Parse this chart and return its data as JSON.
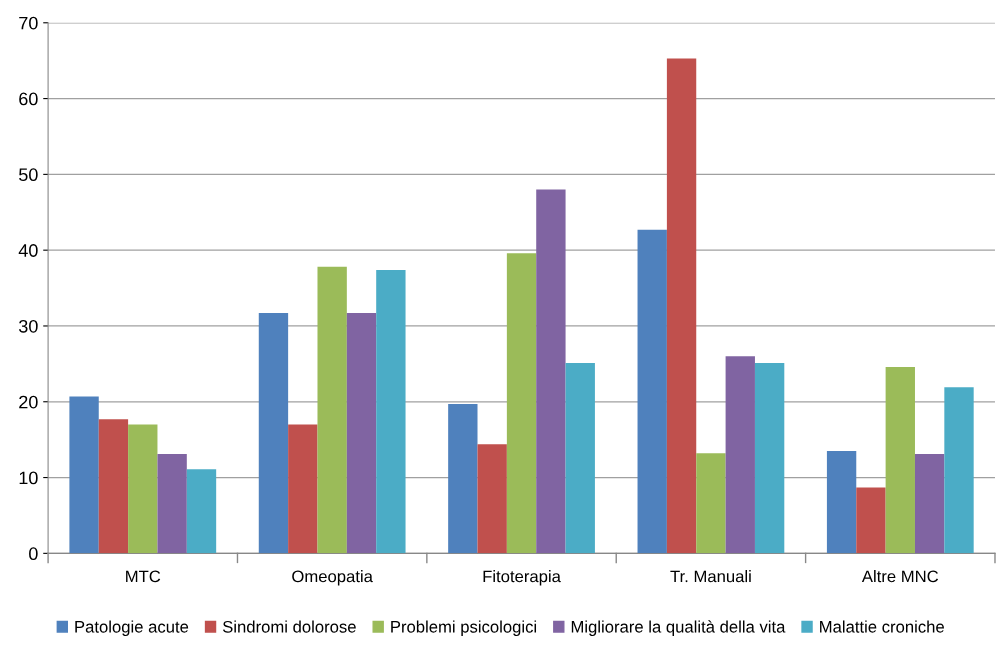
{
  "chart_data": {
    "type": "bar",
    "categories": [
      "MTC",
      "Omeopatia",
      "Fitoterapia",
      "Tr. Manuali",
      "Altre MNC"
    ],
    "series": [
      {
        "name": "Patologie acute",
        "color": "#4f81bd",
        "values": [
          20.7,
          31.7,
          19.7,
          42.7,
          13.5
        ]
      },
      {
        "name": "Sindromi dolorose",
        "color": "#c0504d",
        "values": [
          17.7,
          17.0,
          14.4,
          65.3,
          8.7
        ]
      },
      {
        "name": "Problemi psicologici",
        "color": "#9bbb59",
        "values": [
          17.0,
          37.8,
          39.6,
          13.2,
          24.6
        ]
      },
      {
        "name": "Migliorare la qualità della vita",
        "color": "#8064a2",
        "values": [
          13.1,
          31.7,
          48.0,
          26.0,
          13.1
        ]
      },
      {
        "name": "Malattie croniche",
        "color": "#4bacc6",
        "values": [
          11.1,
          37.4,
          25.1,
          25.1,
          21.9
        ]
      }
    ],
    "ylim": [
      0,
      70
    ],
    "yticks": [
      0,
      10,
      20,
      30,
      40,
      50,
      60,
      70
    ],
    "grid": "y",
    "legend": "bottom"
  }
}
